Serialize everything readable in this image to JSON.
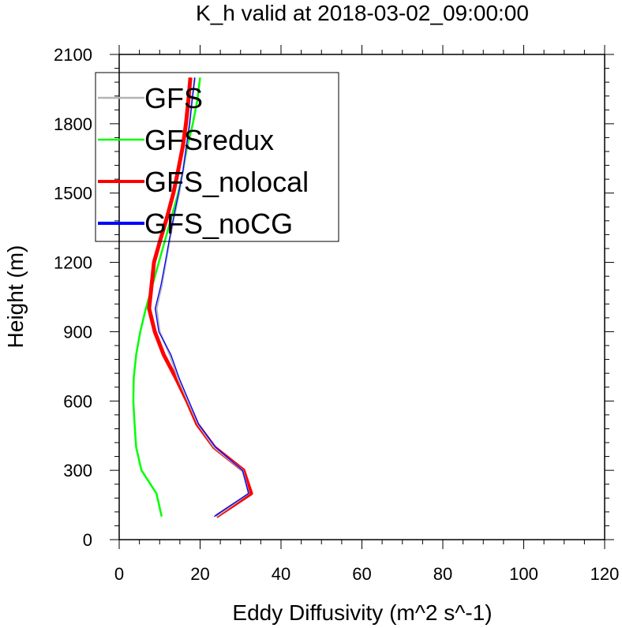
{
  "chart_data": {
    "type": "line",
    "title": "K_h valid at 2018-03-02_09:00:00",
    "xlabel": "Eddy Diffusivity (m^2 s^-1)",
    "ylabel": "Height (m)",
    "xlim": [
      0,
      120
    ],
    "ylim": [
      0,
      2100
    ],
    "xticks": [
      "0",
      "20",
      "40",
      "60",
      "80",
      "100",
      "120"
    ],
    "yticks": [
      "0",
      "300",
      "600",
      "900",
      "1200",
      "1500",
      "1800",
      "2100"
    ],
    "legend_position": "top-left",
    "series": [
      {
        "name": "GFS",
        "color": "#b4b4b4",
        "points": [
          [
            24.0,
            100
          ],
          [
            32.0,
            200
          ],
          [
            30.5,
            300
          ],
          [
            23.5,
            400
          ],
          [
            19.5,
            500
          ],
          [
            17.0,
            600
          ],
          [
            14.5,
            700
          ],
          [
            12.5,
            800
          ],
          [
            10.0,
            900
          ],
          [
            9.2,
            1000
          ],
          [
            10.5,
            1100
          ],
          [
            11.5,
            1200
          ],
          [
            12.5,
            1300
          ],
          [
            13.6,
            1400
          ],
          [
            14.8,
            1500
          ],
          [
            15.8,
            1600
          ],
          [
            16.6,
            1700
          ],
          [
            17.4,
            1800
          ],
          [
            18.0,
            1900
          ],
          [
            18.7,
            2000
          ]
        ]
      },
      {
        "name": "GFSredux",
        "color": "#00ff00",
        "points": [
          [
            10.5,
            100
          ],
          [
            9.2,
            200
          ],
          [
            5.5,
            300
          ],
          [
            4.2,
            400
          ],
          [
            3.8,
            500
          ],
          [
            3.5,
            600
          ],
          [
            3.6,
            700
          ],
          [
            4.2,
            800
          ],
          [
            5.2,
            900
          ],
          [
            6.6,
            1000
          ],
          [
            8.2,
            1100
          ],
          [
            9.8,
            1200
          ],
          [
            11.4,
            1300
          ],
          [
            13.0,
            1400
          ],
          [
            14.6,
            1500
          ],
          [
            15.8,
            1600
          ],
          [
            16.8,
            1700
          ],
          [
            18.2,
            1800
          ],
          [
            19.3,
            1900
          ],
          [
            20.0,
            2000
          ]
        ]
      },
      {
        "name": "GFS_nolocal",
        "color": "#ff0000",
        "points": [
          [
            24.0,
            100
          ],
          [
            32.6,
            200
          ],
          [
            30.7,
            300
          ],
          [
            23.5,
            400
          ],
          [
            19.3,
            500
          ],
          [
            16.8,
            600
          ],
          [
            14.0,
            700
          ],
          [
            11.0,
            800
          ],
          [
            8.8,
            900
          ],
          [
            7.4,
            1000
          ],
          [
            8.0,
            1100
          ],
          [
            8.6,
            1200
          ],
          [
            10.2,
            1300
          ],
          [
            11.9,
            1400
          ],
          [
            13.4,
            1500
          ],
          [
            14.6,
            1600
          ],
          [
            15.7,
            1700
          ],
          [
            16.5,
            1800
          ],
          [
            17.1,
            1900
          ],
          [
            17.6,
            2000
          ]
        ]
      },
      {
        "name": "GFS_noCG",
        "color": "#0000ff",
        "points": [
          [
            23.5,
            100
          ],
          [
            32.0,
            200
          ],
          [
            30.5,
            300
          ],
          [
            23.8,
            400
          ],
          [
            19.6,
            500
          ],
          [
            17.2,
            600
          ],
          [
            14.8,
            700
          ],
          [
            12.8,
            800
          ],
          [
            9.8,
            900
          ],
          [
            8.9,
            1000
          ],
          [
            10.3,
            1100
          ],
          [
            11.4,
            1200
          ],
          [
            12.4,
            1300
          ],
          [
            13.5,
            1400
          ],
          [
            14.7,
            1500
          ],
          [
            15.8,
            1600
          ],
          [
            16.6,
            1700
          ],
          [
            17.4,
            1800
          ],
          [
            18.0,
            1900
          ],
          [
            18.7,
            2000
          ]
        ]
      }
    ]
  }
}
